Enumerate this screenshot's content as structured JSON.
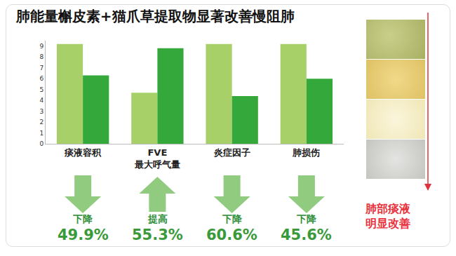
{
  "chart_data": {
    "type": "bar",
    "title": "肺能量槲皮素+猫爪草提取物显著改善慢阻肺",
    "categories": [
      "痰液容积",
      "FVE\n最大呼气量",
      "炎症因子",
      "肺损伤"
    ],
    "series": [
      {
        "color": "#a8d068",
        "values": [
          9.2,
          4.7,
          9.2,
          9.2
        ]
      },
      {
        "color": "#34a83a",
        "values": [
          6.3,
          8.8,
          4.4,
          6.0
        ]
      }
    ],
    "ylim": [
      0,
      9.5
    ],
    "yticks": [
      0,
      1,
      2,
      3,
      4,
      5,
      6,
      7,
      8,
      9
    ],
    "grid": false,
    "changes": {
      "labels": [
        "下降",
        "提高",
        "下降",
        "下降"
      ],
      "direction": [
        "down",
        "up",
        "down",
        "down"
      ],
      "values": [
        49.9,
        55.3,
        60.6,
        45.6
      ],
      "value_labels": [
        "49.9%",
        "55.3%",
        "60.6%",
        "45.6%"
      ]
    },
    "side_note": [
      "肺部痰液",
      "明显改善"
    ]
  }
}
